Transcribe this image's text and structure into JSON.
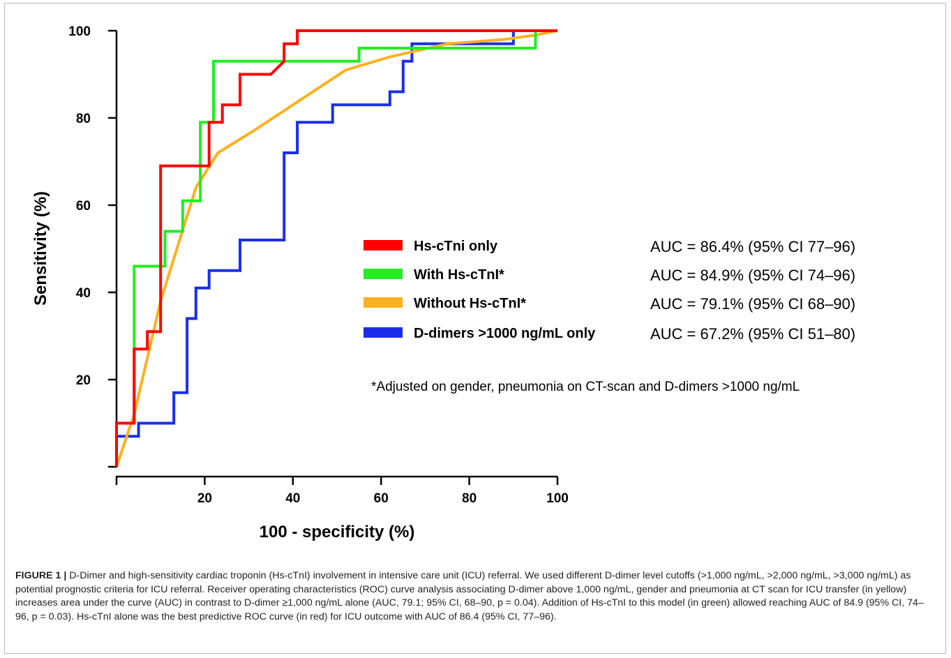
{
  "chart_data": {
    "type": "line",
    "xlabel": "100 - specificity (%)",
    "ylabel": "Sensitivity (%)",
    "xlim": [
      0,
      100
    ],
    "ylim": [
      0,
      100
    ],
    "xticks": [
      "20",
      "40",
      "60",
      "80",
      "100"
    ],
    "yticks": [
      "20",
      "40",
      "60",
      "80",
      "100"
    ],
    "grid": false,
    "legend_position": "center-right",
    "series": [
      {
        "name": "Hs-cTni only",
        "color": "#ff0000",
        "auc_text": "AUC = 86.4% (95% CI 77–96)",
        "points": [
          [
            0,
            0
          ],
          [
            0,
            10
          ],
          [
            4,
            10
          ],
          [
            4,
            27
          ],
          [
            7,
            27
          ],
          [
            7,
            31
          ],
          [
            10,
            31
          ],
          [
            10,
            69
          ],
          [
            21,
            69
          ],
          [
            21,
            79
          ],
          [
            24,
            79
          ],
          [
            24,
            83
          ],
          [
            28,
            83
          ],
          [
            28,
            90
          ],
          [
            35,
            90
          ],
          [
            38,
            93
          ],
          [
            38,
            97
          ],
          [
            41,
            97
          ],
          [
            41,
            100
          ],
          [
            100,
            100
          ]
        ]
      },
      {
        "name": "With Hs-cTnI*",
        "color": "#22ee22",
        "auc_text": "AUC = 84.9% (95% CI 74–96)",
        "points": [
          [
            0,
            0
          ],
          [
            0,
            10
          ],
          [
            4,
            10
          ],
          [
            4,
            46
          ],
          [
            11,
            46
          ],
          [
            11,
            54
          ],
          [
            15,
            54
          ],
          [
            15,
            61
          ],
          [
            19,
            61
          ],
          [
            19,
            79
          ],
          [
            22,
            79
          ],
          [
            22,
            93
          ],
          [
            55,
            93
          ],
          [
            55,
            96
          ],
          [
            95,
            96
          ],
          [
            95,
            100
          ],
          [
            100,
            100
          ]
        ]
      },
      {
        "name": "Without Hs-cTnI*",
        "color": "#ffb020",
        "auc_text": "AUC = 79.1% (95% CI 68–90)",
        "points": [
          [
            0,
            0
          ],
          [
            4,
            12
          ],
          [
            10,
            38
          ],
          [
            18,
            64
          ],
          [
            23,
            72
          ],
          [
            31,
            77
          ],
          [
            43,
            85
          ],
          [
            52,
            91
          ],
          [
            62,
            94
          ],
          [
            75,
            97
          ],
          [
            88,
            98
          ],
          [
            95,
            99
          ],
          [
            100,
            100
          ]
        ]
      },
      {
        "name": "D-dimers >1000 ng/mL only",
        "color": "#1a2ee8",
        "auc_text": "AUC = 67.2% (95% CI 51–80)",
        "points": [
          [
            0,
            0
          ],
          [
            0,
            7
          ],
          [
            5,
            7
          ],
          [
            5,
            10
          ],
          [
            13,
            10
          ],
          [
            13,
            17
          ],
          [
            16,
            17
          ],
          [
            16,
            34
          ],
          [
            18,
            34
          ],
          [
            18,
            41
          ],
          [
            21,
            41
          ],
          [
            21,
            45
          ],
          [
            28,
            45
          ],
          [
            28,
            52
          ],
          [
            38,
            52
          ],
          [
            38,
            72
          ],
          [
            41,
            72
          ],
          [
            41,
            79
          ],
          [
            49,
            79
          ],
          [
            49,
            83
          ],
          [
            62,
            83
          ],
          [
            62,
            86
          ],
          [
            65,
            86
          ],
          [
            65,
            93
          ],
          [
            67,
            93
          ],
          [
            67,
            97
          ],
          [
            90,
            97
          ],
          [
            90,
            100
          ],
          [
            100,
            100
          ]
        ]
      }
    ],
    "annotation": "*Adjusted on gender, pneumonia on CT-scan and D-dimers >1000 ng/mL"
  },
  "caption": {
    "lead": "FIGURE 1 |",
    "text": " D-Dimer and high-sensitivity cardiac troponin (Hs-cTnI) involvement in intensive care unit (ICU) referral. We used different D-dimer level cutoffs (>1,000 ng/mL, >2,000 ng/mL, >3,000 ng/mL) as potential prognostic criteria for ICU referral. Receiver operating characteristics (ROC) curve analysis associating D-dimer above 1,000 ng/mL, gender and pneumonia at CT scan for ICU transfer (in yellow) increases area under the curve (AUC) in contrast to D-dimer ≥1,000 ng/mL alone (AUC, 79.1; 95% CI, 68–90, p = 0.04). Addition of Hs-cTnI to this model (in green) allowed reaching AUC of 84.9 (95% CI, 74–96, p = 0.03). Hs-cTnI alone was the best predictive ROC curve (in red) for ICU outcome with AUC of 86.4 (95% CI, 77–96)."
  }
}
